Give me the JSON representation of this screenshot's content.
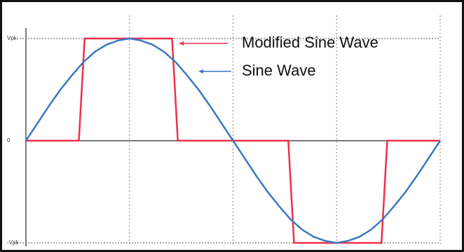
{
  "chart_data": {
    "type": "line",
    "xlim": [
      0,
      360
    ],
    "xticks": [
      0,
      90,
      180,
      270,
      360
    ],
    "ylim": [
      -1,
      1
    ],
    "yticks": [
      {
        "value": 1,
        "label": "Vpk"
      },
      0,
      {
        "value": -1,
        "label": "-Vpk"
      }
    ],
    "grid": true,
    "series": [
      {
        "name": "Modified Sine Wave",
        "color": "#ef2f4b",
        "x": [
          0,
          46,
          51,
          127,
          132,
          228,
          233,
          309,
          314,
          360
        ],
        "values": [
          0,
          0,
          1,
          1,
          0,
          0,
          -1,
          -1,
          0,
          0
        ]
      },
      {
        "name": "Sine Wave",
        "color": "#3b78c3",
        "x": [
          0,
          10,
          20,
          30,
          40,
          50,
          60,
          70,
          80,
          90,
          100,
          110,
          120,
          130,
          140,
          150,
          160,
          170,
          180,
          190,
          200,
          210,
          220,
          230,
          240,
          250,
          260,
          270,
          280,
          290,
          300,
          310,
          320,
          330,
          340,
          350,
          360
        ],
        "values": [
          0,
          0.17,
          0.34,
          0.5,
          0.64,
          0.77,
          0.87,
          0.94,
          0.98,
          1,
          0.98,
          0.94,
          0.87,
          0.77,
          0.64,
          0.5,
          0.34,
          0.17,
          0,
          -0.17,
          -0.34,
          -0.5,
          -0.64,
          -0.77,
          -0.87,
          -0.94,
          -0.98,
          -1,
          -0.98,
          -0.94,
          -0.87,
          -0.77,
          -0.64,
          -0.5,
          -0.34,
          -0.17,
          0
        ]
      }
    ]
  }
}
